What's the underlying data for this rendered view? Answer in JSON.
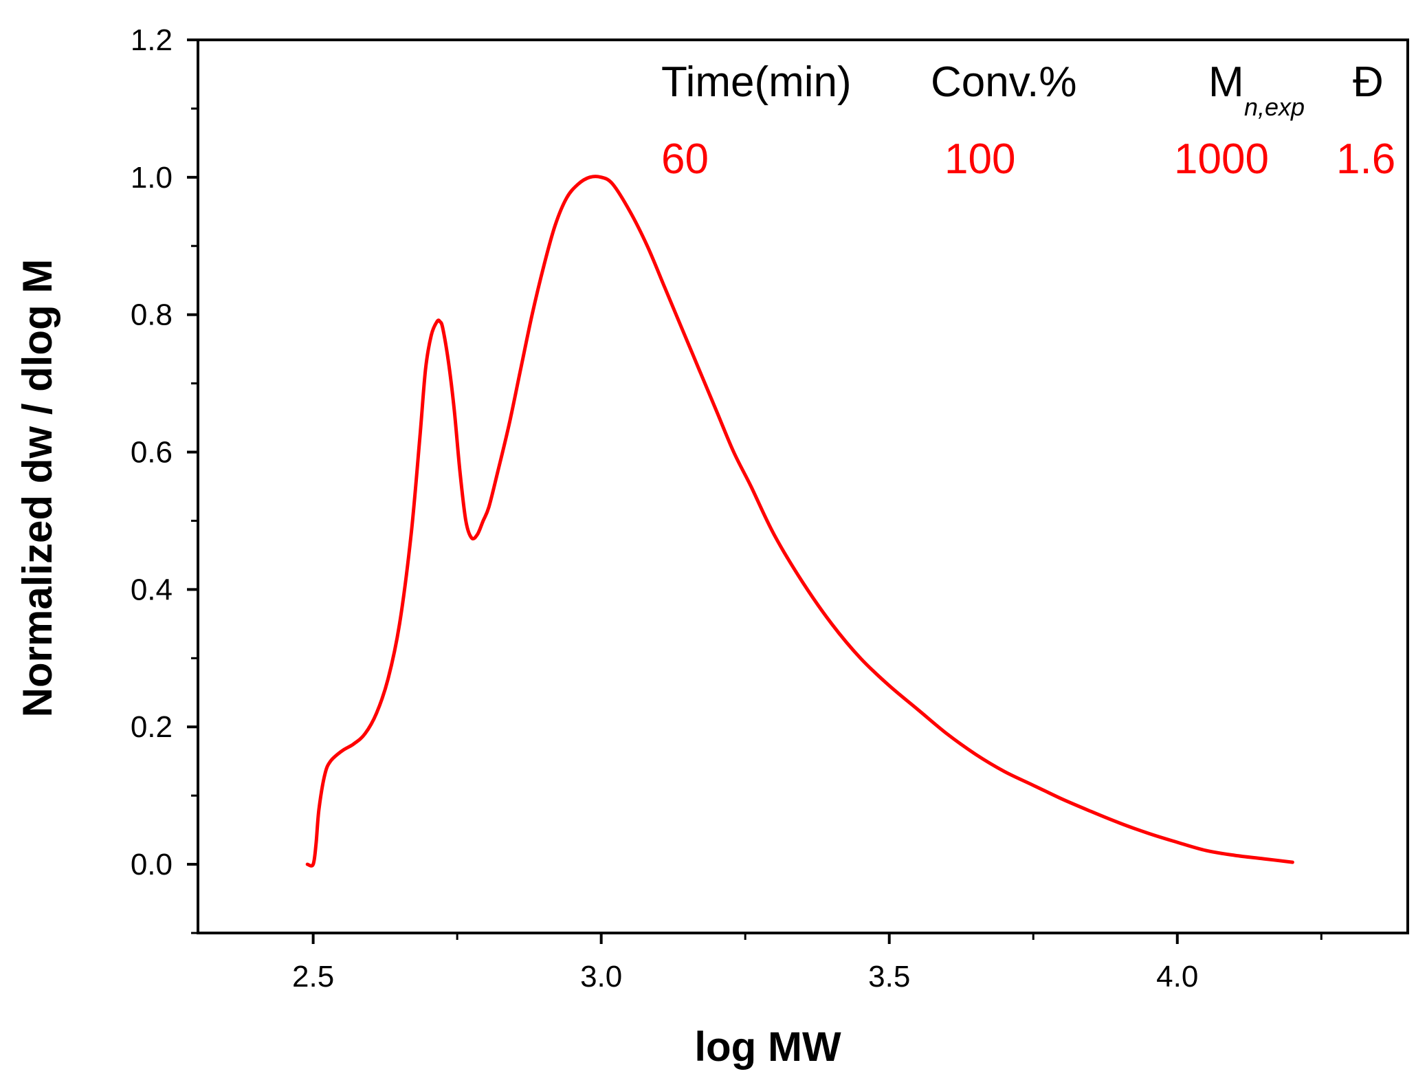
{
  "chart_data": {
    "type": "line",
    "title": "",
    "xlabel": "log MW",
    "ylabel": "Normalized dw / dlog M",
    "xlim": [
      2.3,
      4.4
    ],
    "ylim": [
      -0.1,
      1.2
    ],
    "x_ticks": [
      "2.5",
      "3.0",
      "3.5",
      "4.0"
    ],
    "x_tick_values": [
      2.5,
      3.0,
      3.5,
      4.0
    ],
    "x_minor_tick_values": [
      2.75,
      3.25,
      3.75,
      4.25
    ],
    "y_ticks": [
      "0.0",
      "0.2",
      "0.4",
      "0.6",
      "0.8",
      "1.0",
      "1.2"
    ],
    "y_tick_values": [
      0.0,
      0.2,
      0.4,
      0.6,
      0.8,
      1.0,
      1.2
    ],
    "y_minor_tick_values": [
      -0.1,
      0.1,
      0.3,
      0.5,
      0.7,
      0.9,
      1.1
    ],
    "grid": false,
    "series": [
      {
        "name": "60 min",
        "color": "#ff0000",
        "x": [
          2.49,
          2.5,
          2.505,
          2.51,
          2.52,
          2.53,
          2.55,
          2.57,
          2.59,
          2.61,
          2.63,
          2.65,
          2.67,
          2.685,
          2.695,
          2.705,
          2.715,
          2.72,
          2.725,
          2.735,
          2.745,
          2.755,
          2.765,
          2.775,
          2.785,
          2.795,
          2.805,
          2.82,
          2.84,
          2.86,
          2.88,
          2.9,
          2.92,
          2.94,
          2.96,
          2.98,
          3.0,
          3.02,
          3.05,
          3.08,
          3.11,
          3.14,
          3.17,
          3.2,
          3.23,
          3.26,
          3.3,
          3.35,
          3.4,
          3.45,
          3.5,
          3.55,
          3.6,
          3.65,
          3.7,
          3.75,
          3.8,
          3.85,
          3.9,
          3.95,
          4.0,
          4.05,
          4.1,
          4.15,
          4.2
        ],
        "y": [
          0.0,
          0.0,
          0.03,
          0.08,
          0.13,
          0.15,
          0.165,
          0.175,
          0.19,
          0.22,
          0.27,
          0.35,
          0.48,
          0.62,
          0.72,
          0.77,
          0.79,
          0.79,
          0.78,
          0.73,
          0.66,
          0.57,
          0.5,
          0.475,
          0.48,
          0.5,
          0.52,
          0.57,
          0.64,
          0.72,
          0.8,
          0.87,
          0.93,
          0.97,
          0.99,
          1.0,
          1.0,
          0.99,
          0.95,
          0.9,
          0.84,
          0.78,
          0.72,
          0.66,
          0.6,
          0.55,
          0.48,
          0.41,
          0.35,
          0.3,
          0.26,
          0.225,
          0.19,
          0.16,
          0.135,
          0.115,
          0.095,
          0.077,
          0.06,
          0.045,
          0.032,
          0.02,
          0.013,
          0.008,
          0.003
        ]
      }
    ],
    "annotations": {
      "headers": {
        "time": "Time(min)",
        "conv": "Conv.%",
        "mn_main": "M",
        "mn_sub": "n,exp",
        "dispersity": "Đ"
      },
      "values": {
        "time": "60",
        "conv": "100",
        "mn": "1000",
        "dispersity": "1.6"
      },
      "value_color": "#ff0000"
    }
  }
}
